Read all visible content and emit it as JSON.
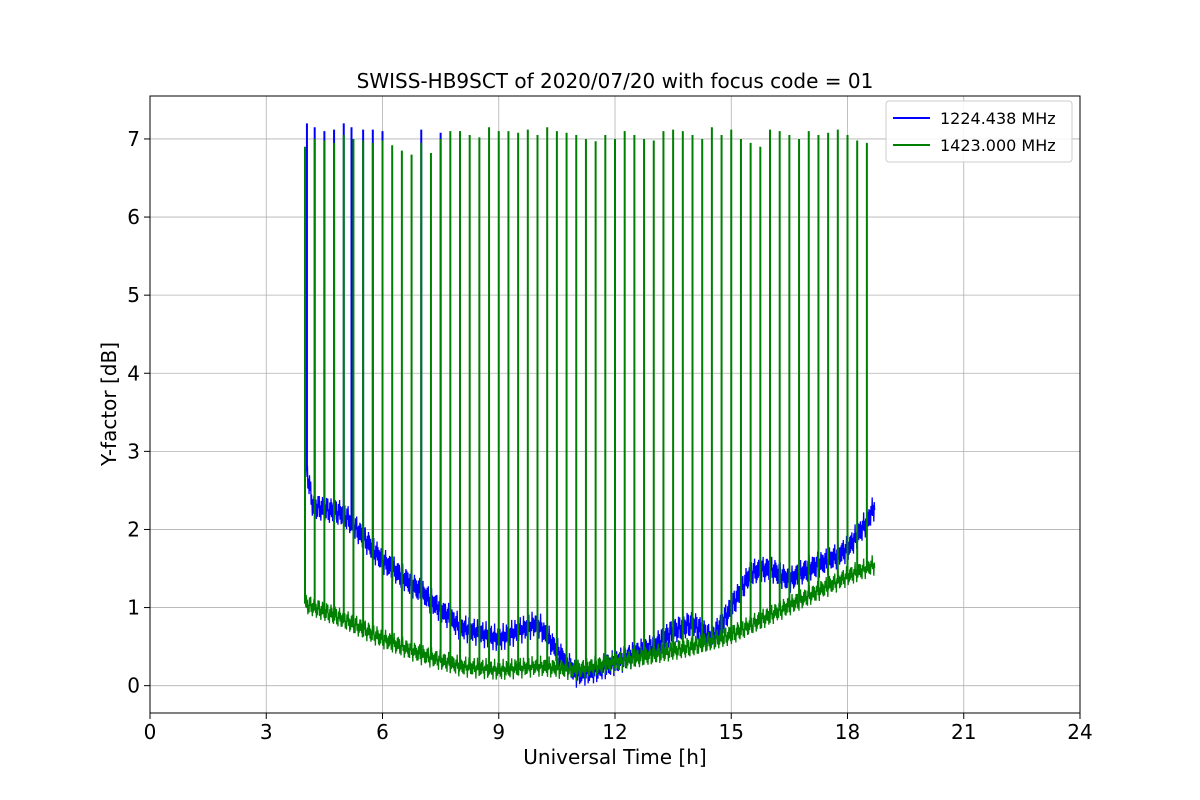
{
  "chart_data": {
    "type": "line",
    "title": "SWISS-HB9SCT of 2020/07/20 with focus code = 01",
    "xlabel": "Universal Time [h]",
    "ylabel": "Y-factor [dB]",
    "xlim": [
      0,
      24
    ],
    "ylim": [
      -0.35,
      7.55
    ],
    "xticks": [
      0,
      3,
      6,
      9,
      12,
      15,
      18,
      21,
      24
    ],
    "yticks": [
      0,
      1,
      2,
      3,
      4,
      5,
      6,
      7
    ],
    "grid": true,
    "legend_position": "top-right",
    "series": [
      {
        "name": "1224.438 MHz",
        "color": "#0000ff",
        "baseline": [
          [
            4.0,
            2.9
          ],
          [
            4.2,
            2.3
          ],
          [
            5.0,
            2.2
          ],
          [
            6.0,
            1.6
          ],
          [
            7.0,
            1.2
          ],
          [
            8.0,
            0.75
          ],
          [
            9.0,
            0.6
          ],
          [
            10.0,
            0.8
          ],
          [
            10.5,
            0.45
          ],
          [
            11.0,
            0.15
          ],
          [
            11.5,
            0.2
          ],
          [
            12.0,
            0.3
          ],
          [
            13.0,
            0.5
          ],
          [
            13.5,
            0.7
          ],
          [
            14.0,
            0.8
          ],
          [
            14.5,
            0.6
          ],
          [
            15.0,
            1.0
          ],
          [
            15.5,
            1.45
          ],
          [
            16.0,
            1.5
          ],
          [
            16.5,
            1.35
          ],
          [
            17.0,
            1.5
          ],
          [
            17.5,
            1.6
          ],
          [
            18.0,
            1.75
          ],
          [
            18.5,
            2.1
          ],
          [
            18.7,
            2.3
          ]
        ],
        "spikes": [
          [
            4.05,
            7.2
          ],
          [
            4.25,
            7.15
          ],
          [
            4.5,
            7.1
          ],
          [
            4.75,
            7.12
          ],
          [
            5.0,
            7.2
          ],
          [
            5.2,
            7.15
          ],
          [
            5.5,
            7.12
          ],
          [
            5.75,
            7.12
          ],
          [
            6.0,
            7.1
          ],
          [
            7.0,
            7.12
          ],
          [
            7.5,
            7.08
          ]
        ]
      },
      {
        "name": "1423.000 MHz",
        "color": "#008000",
        "baseline": [
          [
            4.0,
            1.05
          ],
          [
            5.0,
            0.85
          ],
          [
            6.0,
            0.6
          ],
          [
            7.0,
            0.4
          ],
          [
            8.0,
            0.25
          ],
          [
            9.0,
            0.2
          ],
          [
            10.0,
            0.25
          ],
          [
            11.0,
            0.2
          ],
          [
            12.0,
            0.3
          ],
          [
            13.0,
            0.4
          ],
          [
            14.0,
            0.5
          ],
          [
            15.0,
            0.65
          ],
          [
            16.0,
            0.9
          ],
          [
            17.0,
            1.15
          ],
          [
            18.0,
            1.4
          ],
          [
            18.7,
            1.55
          ]
        ],
        "spikes": [
          [
            4.0,
            6.9
          ],
          [
            4.25,
            7.0
          ],
          [
            4.5,
            6.98
          ],
          [
            4.75,
            6.95
          ],
          [
            5.0,
            7.05
          ],
          [
            5.25,
            7.0
          ],
          [
            5.5,
            6.98
          ],
          [
            5.75,
            6.95
          ],
          [
            6.0,
            6.98
          ],
          [
            6.25,
            6.92
          ],
          [
            6.5,
            6.85
          ],
          [
            6.75,
            6.8
          ],
          [
            7.0,
            6.95
          ],
          [
            7.25,
            6.82
          ],
          [
            7.5,
            7.0
          ],
          [
            7.75,
            7.1
          ],
          [
            8.0,
            7.1
          ],
          [
            8.25,
            7.05
          ],
          [
            8.5,
            7.02
          ],
          [
            8.75,
            7.15
          ],
          [
            9.0,
            7.1
          ],
          [
            9.25,
            7.1
          ],
          [
            9.5,
            7.08
          ],
          [
            9.75,
            7.12
          ],
          [
            10.0,
            7.05
          ],
          [
            10.25,
            7.15
          ],
          [
            10.5,
            7.1
          ],
          [
            10.75,
            7.08
          ],
          [
            11.0,
            7.05
          ],
          [
            11.25,
            7.0
          ],
          [
            11.5,
            6.97
          ],
          [
            11.75,
            7.05
          ],
          [
            12.0,
            7.0
          ],
          [
            12.25,
            7.1
          ],
          [
            12.5,
            7.05
          ],
          [
            12.75,
            7.0
          ],
          [
            13.0,
            6.98
          ],
          [
            13.25,
            7.1
          ],
          [
            13.5,
            7.12
          ],
          [
            13.75,
            7.1
          ],
          [
            14.0,
            7.05
          ],
          [
            14.25,
            7.0
          ],
          [
            14.5,
            7.15
          ],
          [
            14.75,
            7.05
          ],
          [
            15.0,
            7.12
          ],
          [
            15.25,
            7.0
          ],
          [
            15.5,
            6.95
          ],
          [
            15.75,
            6.9
          ],
          [
            16.0,
            7.12
          ],
          [
            16.25,
            7.1
          ],
          [
            16.5,
            7.05
          ],
          [
            16.75,
            7.0
          ],
          [
            17.0,
            7.1
          ],
          [
            17.25,
            7.05
          ],
          [
            17.5,
            7.08
          ],
          [
            17.75,
            7.12
          ],
          [
            18.0,
            7.05
          ],
          [
            18.25,
            6.98
          ],
          [
            18.5,
            6.95
          ]
        ]
      }
    ]
  }
}
